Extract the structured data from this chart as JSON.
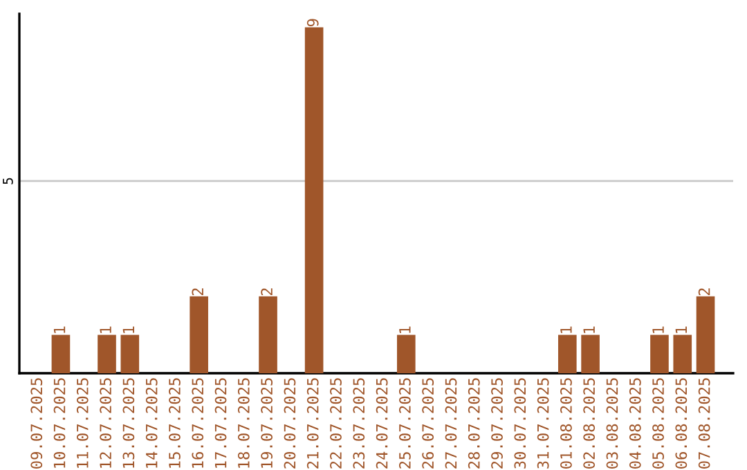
{
  "chart_data": {
    "type": "bar",
    "categories": [
      "09.07.2025",
      "10.07.2025",
      "11.07.2025",
      "12.07.2025",
      "13.07.2025",
      "14.07.2025",
      "15.07.2025",
      "16.07.2025",
      "17.07.2025",
      "18.07.2025",
      "19.07.2025",
      "20.07.2025",
      "21.07.2025",
      "22.07.2025",
      "23.07.2025",
      "24.07.2025",
      "25.07.2025",
      "26.07.2025",
      "27.07.2025",
      "28.07.2025",
      "29.07.2025",
      "30.07.2025",
      "31.07.2025",
      "01.08.2025",
      "02.08.2025",
      "03.08.2025",
      "04.08.2025",
      "05.08.2025",
      "06.08.2025",
      "07.08.2025"
    ],
    "values": [
      0,
      1,
      0,
      1,
      1,
      0,
      0,
      2,
      0,
      0,
      2,
      0,
      9,
      0,
      0,
      0,
      1,
      0,
      0,
      0,
      0,
      0,
      0,
      1,
      1,
      0,
      0,
      1,
      1,
      2
    ],
    "value_labels": [
      null,
      "1",
      null,
      "1",
      "1",
      null,
      null,
      "2",
      null,
      null,
      "2",
      null,
      "9",
      null,
      null,
      null,
      "1",
      null,
      null,
      null,
      null,
      null,
      null,
      "1",
      "1",
      null,
      null,
      "1",
      "1",
      "2"
    ],
    "color": "#a0562a",
    "ylim": [
      0,
      9.35
    ],
    "yticks": [
      5
    ],
    "grid": "y"
  }
}
